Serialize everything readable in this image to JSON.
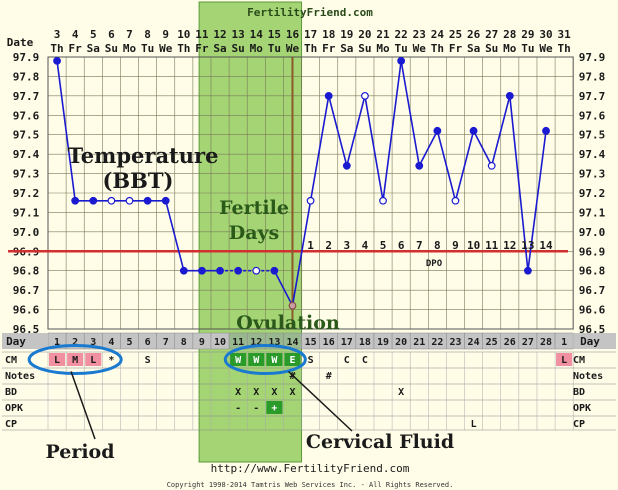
{
  "site": {
    "name": "FertilityFriend.com",
    "url": "http://www.FertilityFriend.com",
    "copyright": "Copyright 1998-2014 Tamtris Web Services Inc. - All Rights Reserved."
  },
  "row_labels": {
    "date": "Date",
    "day": "Day",
    "cm": "CM",
    "notes": "Notes",
    "bd": "BD",
    "opk": "OPK",
    "cp": "CP"
  },
  "annotations": {
    "temperature": [
      "Temperature",
      "(BBT)"
    ],
    "fertile_days": [
      "Fertile",
      "Days"
    ],
    "ovulation": "Ovulation",
    "dpo": "DPO",
    "period": "Period",
    "cervical_fluid": "Cervical  Fluid"
  },
  "colors": {
    "background": "#fffde8",
    "grid": "#7a7a5a",
    "fertile": "#a4d474",
    "fertile_border": "#5a9a3a",
    "temp_line": "#1a1ad0",
    "coverline": "#d03030",
    "ovulation_line": "#8a5a2a",
    "period_cell": "#f090a0",
    "fertile_cm_cell": "#2a9a2a",
    "ellipse": "#1a7ad0",
    "annotation_text": "#1a1a1a",
    "fertile_text": "#2a5a1a"
  },
  "chart_data": {
    "type": "line",
    "title": "",
    "ylabel": "",
    "ylim": [
      96.5,
      97.9
    ],
    "y_ticks": [
      "96.5",
      "96.6",
      "96.7",
      "96.8",
      "96.9",
      "97.0",
      "97.1",
      "97.2",
      "97.3",
      "97.4",
      "97.5",
      "97.6",
      "97.7",
      "97.8",
      "97.9"
    ],
    "dates": [
      "3",
      "4",
      "5",
      "6",
      "7",
      "8",
      "9",
      "10",
      "11",
      "12",
      "13",
      "14",
      "15",
      "16",
      "17",
      "18",
      "19",
      "20",
      "21",
      "22",
      "23",
      "24",
      "25",
      "26",
      "27",
      "28",
      "29",
      "30",
      "31"
    ],
    "weekdays": [
      "Th",
      "Fr",
      "Sa",
      "Su",
      "Mo",
      "Tu",
      "We",
      "Th",
      "Fr",
      "Sa",
      "Su",
      "Mo",
      "Tu",
      "We",
      "Th",
      "Fr",
      "Sa",
      "Su",
      "Mo",
      "Tu",
      "We",
      "Th",
      "Fr",
      "Sa",
      "Su",
      "Mo",
      "Tu",
      "We",
      "Th"
    ],
    "cycle_days": [
      "1",
      "2",
      "3",
      "4",
      "5",
      "6",
      "7",
      "8",
      "9",
      "10",
      "11",
      "12",
      "13",
      "14",
      "15",
      "16",
      "17",
      "18",
      "19",
      "20",
      "21",
      "22",
      "23",
      "24",
      "25",
      "26",
      "27",
      "28",
      "1"
    ],
    "temperatures": [
      97.88,
      97.16,
      97.16,
      97.16,
      97.16,
      97.16,
      97.16,
      96.8,
      96.8,
      96.8,
      96.8,
      96.8,
      96.8,
      96.62,
      97.16,
      97.7,
      97.34,
      97.7,
      97.16,
      97.88,
      97.34,
      97.52,
      97.16,
      97.52,
      97.34,
      97.7,
      96.8,
      97.52,
      null
    ],
    "open_markers": [
      3,
      4,
      11,
      13,
      14,
      17,
      18,
      22,
      24
    ],
    "dashed_segments": [
      [
        9,
        10
      ],
      [
        10,
        11
      ],
      [
        11,
        12
      ]
    ],
    "coverline": 96.9,
    "ovulation_day_index": 13,
    "fertile_day_range": [
      10,
      13
    ],
    "dpo_labels": [
      "1",
      "2",
      "3",
      "4",
      "5",
      "6",
      "7",
      "8",
      "9",
      "10",
      "11",
      "12",
      "13",
      "14"
    ],
    "dpo_start_index": 14,
    "cm": [
      "L",
      "M",
      "L",
      "*",
      "",
      "S",
      "",
      "",
      "",
      "",
      "W",
      "W",
      "W",
      "E",
      "S",
      "",
      "C",
      "C",
      "",
      "",
      "",
      "",
      "",
      "",
      "",
      "",
      "",
      "",
      "L"
    ],
    "notes": [
      "",
      "",
      "",
      "",
      "",
      "",
      "",
      "",
      "",
      "",
      "",
      "",
      "",
      "#",
      "",
      "#",
      "",
      "",
      "",
      "",
      "",
      "",
      "",
      "",
      "",
      "",
      "",
      "",
      ""
    ],
    "bd": [
      "",
      "",
      "",
      "",
      "",
      "",
      "",
      "",
      "",
      "",
      "X",
      "X",
      "X",
      "X",
      "",
      "",
      "",
      "",
      "",
      "X",
      "",
      "",
      "",
      "",
      "",
      "",
      "",
      "",
      ""
    ],
    "opk": [
      "",
      "",
      "",
      "",
      "",
      "",
      "",
      "",
      "",
      "",
      "-",
      "-",
      "+",
      "",
      "",
      "",
      "",
      "",
      "",
      "",
      "",
      "",
      "",
      "",
      "",
      "",
      "",
      "",
      ""
    ],
    "cp": [
      "",
      "",
      "",
      "",
      "",
      "",
      "",
      "",
      "",
      "",
      "",
      "",
      "",
      "",
      "",
      "",
      "",
      "",
      "",
      "",
      "",
      "",
      "",
      "L",
      "",
      "",
      "",
      "",
      ""
    ]
  }
}
